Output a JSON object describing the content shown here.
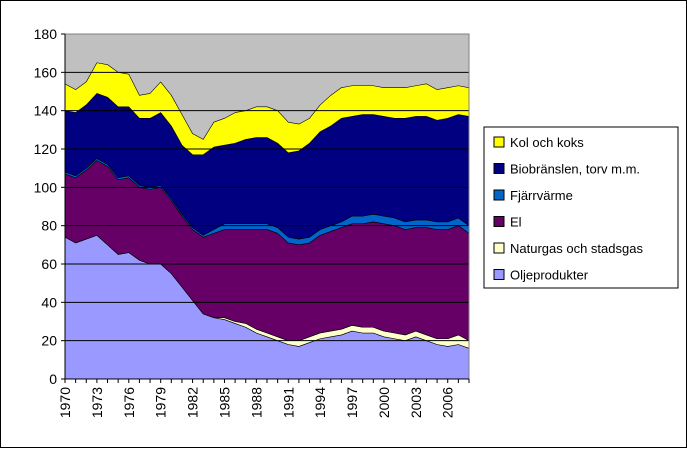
{
  "chart_data": {
    "type": "area",
    "stacked": true,
    "title": "",
    "xlabel": "",
    "ylabel": "",
    "ylim": [
      0,
      180
    ],
    "yticks": [
      0,
      20,
      40,
      60,
      80,
      100,
      120,
      140,
      160,
      180
    ],
    "x": [
      1970,
      1971,
      1972,
      1973,
      1974,
      1975,
      1976,
      1977,
      1978,
      1979,
      1980,
      1981,
      1982,
      1983,
      1984,
      1985,
      1986,
      1987,
      1988,
      1989,
      1990,
      1991,
      1992,
      1993,
      1994,
      1995,
      1996,
      1997,
      1998,
      1999,
      2000,
      2001,
      2002,
      2003,
      2004,
      2005,
      2006,
      2007,
      2008
    ],
    "xtick_labels": [
      "1970",
      "1973",
      "1976",
      "1979",
      "1982",
      "1985",
      "1988",
      "1991",
      "1994",
      "1997",
      "2000",
      "2003",
      "2006"
    ],
    "plot_background": "#c0c0c0",
    "gridlines": "horizontal",
    "legend_position": "right",
    "series": [
      {
        "name": "Oljeprodukter",
        "color": "#9999ff",
        "values": [
          74,
          71,
          73,
          75,
          70,
          65,
          66,
          62,
          60,
          60,
          55,
          48,
          41,
          34,
          32,
          31,
          29,
          27,
          24,
          22,
          20,
          18,
          17,
          19,
          21,
          22,
          23,
          25,
          24,
          24,
          22,
          21,
          20,
          22,
          20,
          18,
          17,
          18,
          16
        ]
      },
      {
        "name": "Naturgas och stadsgas",
        "color": "#ffffcc",
        "values": [
          0,
          0,
          0,
          0,
          0,
          0,
          0,
          0,
          0,
          0,
          0,
          0,
          0,
          0,
          0,
          1,
          1,
          2,
          2,
          2,
          2,
          2,
          3,
          3,
          3,
          3,
          3,
          3,
          3,
          3,
          3,
          3,
          3,
          3,
          3,
          3,
          4,
          5,
          4
        ]
      },
      {
        "name": "El",
        "color": "#660066",
        "values": [
          33,
          34,
          36,
          39,
          41,
          39,
          39,
          38,
          39,
          40,
          38,
          37,
          37,
          40,
          44,
          46,
          48,
          49,
          52,
          54,
          54,
          51,
          50,
          49,
          51,
          52,
          53,
          53,
          54,
          55,
          56,
          56,
          55,
          54,
          56,
          57,
          57,
          57,
          56
        ]
      },
      {
        "name": "Fjärrvärme",
        "color": "#0066cc",
        "values": [
          1,
          1,
          1,
          1,
          1,
          1,
          1,
          1,
          1,
          1,
          1,
          1,
          1,
          1,
          2,
          3,
          3,
          3,
          3,
          3,
          3,
          3,
          3,
          3,
          3,
          3,
          3,
          4,
          4,
          4,
          4,
          4,
          4,
          4,
          4,
          4,
          4,
          4,
          4
        ]
      },
      {
        "name": "Biobränslen,  torv m.m.",
        "color": "#000080",
        "values": [
          32,
          33,
          33,
          34,
          35,
          37,
          36,
          35,
          36,
          38,
          38,
          36,
          38,
          42,
          43,
          41,
          42,
          44,
          45,
          45,
          44,
          44,
          46,
          49,
          51,
          52,
          54,
          52,
          53,
          52,
          52,
          52,
          54,
          54,
          54,
          53,
          54,
          54,
          57
        ]
      },
      {
        "name": "Kol och koks",
        "color": "#ffff00",
        "values": [
          14,
          12,
          12,
          16,
          17,
          18,
          17,
          12,
          13,
          16,
          16,
          16,
          11,
          8,
          13,
          14,
          16,
          15,
          16,
          16,
          17,
          16,
          14,
          13,
          14,
          16,
          16,
          16,
          15,
          15,
          15,
          16,
          16,
          16,
          17,
          16,
          16,
          15,
          15
        ]
      }
    ]
  }
}
